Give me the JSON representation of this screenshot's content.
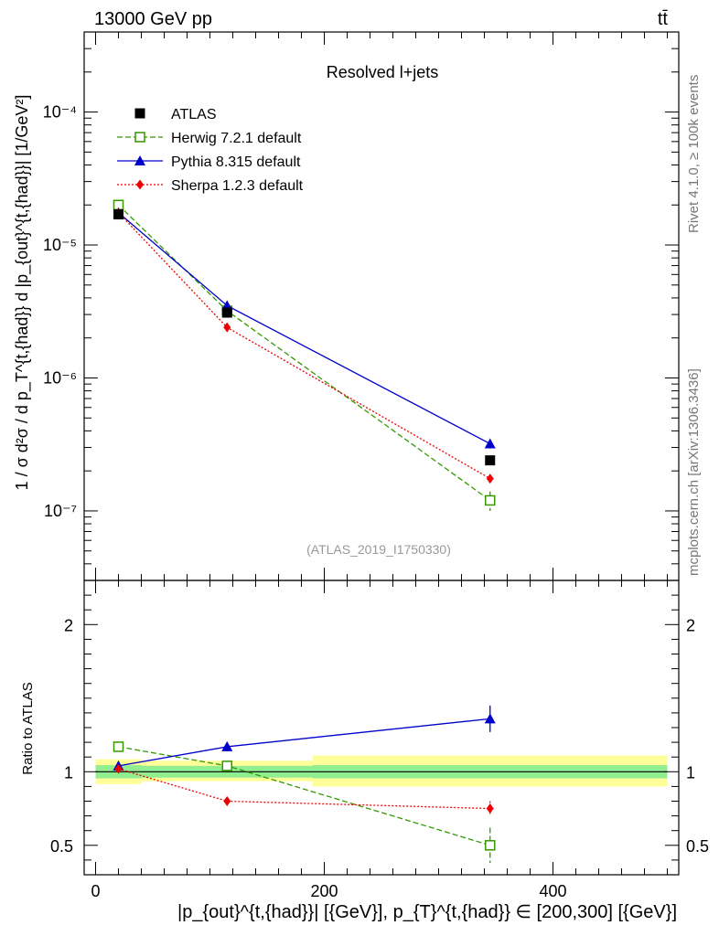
{
  "header": {
    "left": "13000 GeV pp",
    "right": "tt̄"
  },
  "side_labels": {
    "rivet": "Rivet 4.1.0, ≥ 100k events",
    "mcplots": "mcplots.cern.ch [arXiv:1306.3436]"
  },
  "chart_data": [
    {
      "type": "line",
      "title": "Resolved l+jets",
      "watermark": "(ATLAS_2019_I1750330)",
      "ylabel": "1 / σ d²σ / d p_T^{t,{had}} d |p_{out}^{t,{had}}| [1/GeV²]",
      "yscale": "log",
      "ylim": [
        3e-08,
        0.0004
      ],
      "xlim": [
        -10,
        510
      ],
      "y_tick_labels": [
        "10⁻⁷",
        "10⁻⁶",
        "10⁻⁵",
        "10⁻⁴"
      ],
      "x": [
        20,
        115,
        345
      ],
      "x_bins": [
        [
          0,
          40
        ],
        [
          40,
          190
        ],
        [
          190,
          500
        ]
      ],
      "legend": {
        "position": "top-left",
        "entries": [
          "ATLAS",
          "Herwig 7.2.1 default",
          "Pythia 8.315 default",
          "Sherpa 1.2.3 default"
        ]
      },
      "series": [
        {
          "name": "ATLAS",
          "values": [
            1.7e-05,
            3.1e-06,
            2.4e-07
          ],
          "color": "#000000",
          "marker": "square-filled",
          "line": "none"
        },
        {
          "name": "Herwig 7.2.1 default",
          "values": [
            2e-05,
            3.2e-06,
            1.2e-07
          ],
          "errors": [
            0,
            0,
            2e-08
          ],
          "color": "#339900",
          "marker": "square-open",
          "line": "dashed"
        },
        {
          "name": "Pythia 8.315 default",
          "values": [
            1.75e-05,
            3.5e-06,
            3.2e-07
          ],
          "errors": [
            0,
            0,
            2.5e-08
          ],
          "color": "#0000cc",
          "marker": "triangle-filled",
          "line": "solid"
        },
        {
          "name": "Sherpa 1.2.3 default",
          "values": [
            1.75e-05,
            2.4e-06,
            1.75e-07
          ],
          "errors": [
            0,
            0,
            1e-08
          ],
          "color": "#ee0000",
          "marker": "diamond-filled",
          "line": "dotted"
        }
      ]
    },
    {
      "type": "line",
      "ylabel": "Ratio to ATLAS",
      "xlabel": "|p_{out}^{t,{had}}| [{GeV}], p_{T}^{t,{had}} ∈ [200,300] [{GeV}]",
      "ylim": [
        0.3,
        2.3
      ],
      "xlim": [
        -10,
        510
      ],
      "y_tick_labels": [
        "0.5",
        "1",
        "2"
      ],
      "x_tick_labels": [
        "0",
        "200",
        "400"
      ],
      "x": [
        20,
        115,
        345
      ],
      "bands": [
        {
          "xmin": 0,
          "xmax": 40,
          "stat": [
            0.955,
            1.045
          ],
          "total": [
            0.915,
            1.085
          ]
        },
        {
          "xmin": 40,
          "xmax": 190,
          "stat": [
            0.96,
            1.04
          ],
          "total": [
            0.935,
            1.075
          ]
        },
        {
          "xmin": 190,
          "xmax": 500,
          "stat": [
            0.955,
            1.045
          ],
          "total": [
            0.9,
            1.11
          ]
        }
      ],
      "band_colors": {
        "stat": "#90ee90",
        "total": "#ffff99"
      },
      "series": [
        {
          "name": "Herwig 7.2.1 default",
          "values": [
            1.17,
            1.04,
            0.5
          ],
          "errors": [
            0.01,
            0.01,
            0.12
          ],
          "color": "#339900",
          "marker": "square-open",
          "line": "dashed"
        },
        {
          "name": "Pythia 8.315 default",
          "values": [
            1.04,
            1.17,
            1.36
          ],
          "errors": [
            0.02,
            0.03,
            0.09
          ],
          "color": "#0000cc",
          "marker": "triangle-filled",
          "line": "solid"
        },
        {
          "name": "Sherpa 1.2.3 default",
          "values": [
            1.02,
            0.8,
            0.75
          ],
          "errors": [
            0.01,
            0.01,
            0.05
          ],
          "color": "#ee0000",
          "marker": "diamond-filled",
          "line": "dotted"
        }
      ]
    }
  ]
}
